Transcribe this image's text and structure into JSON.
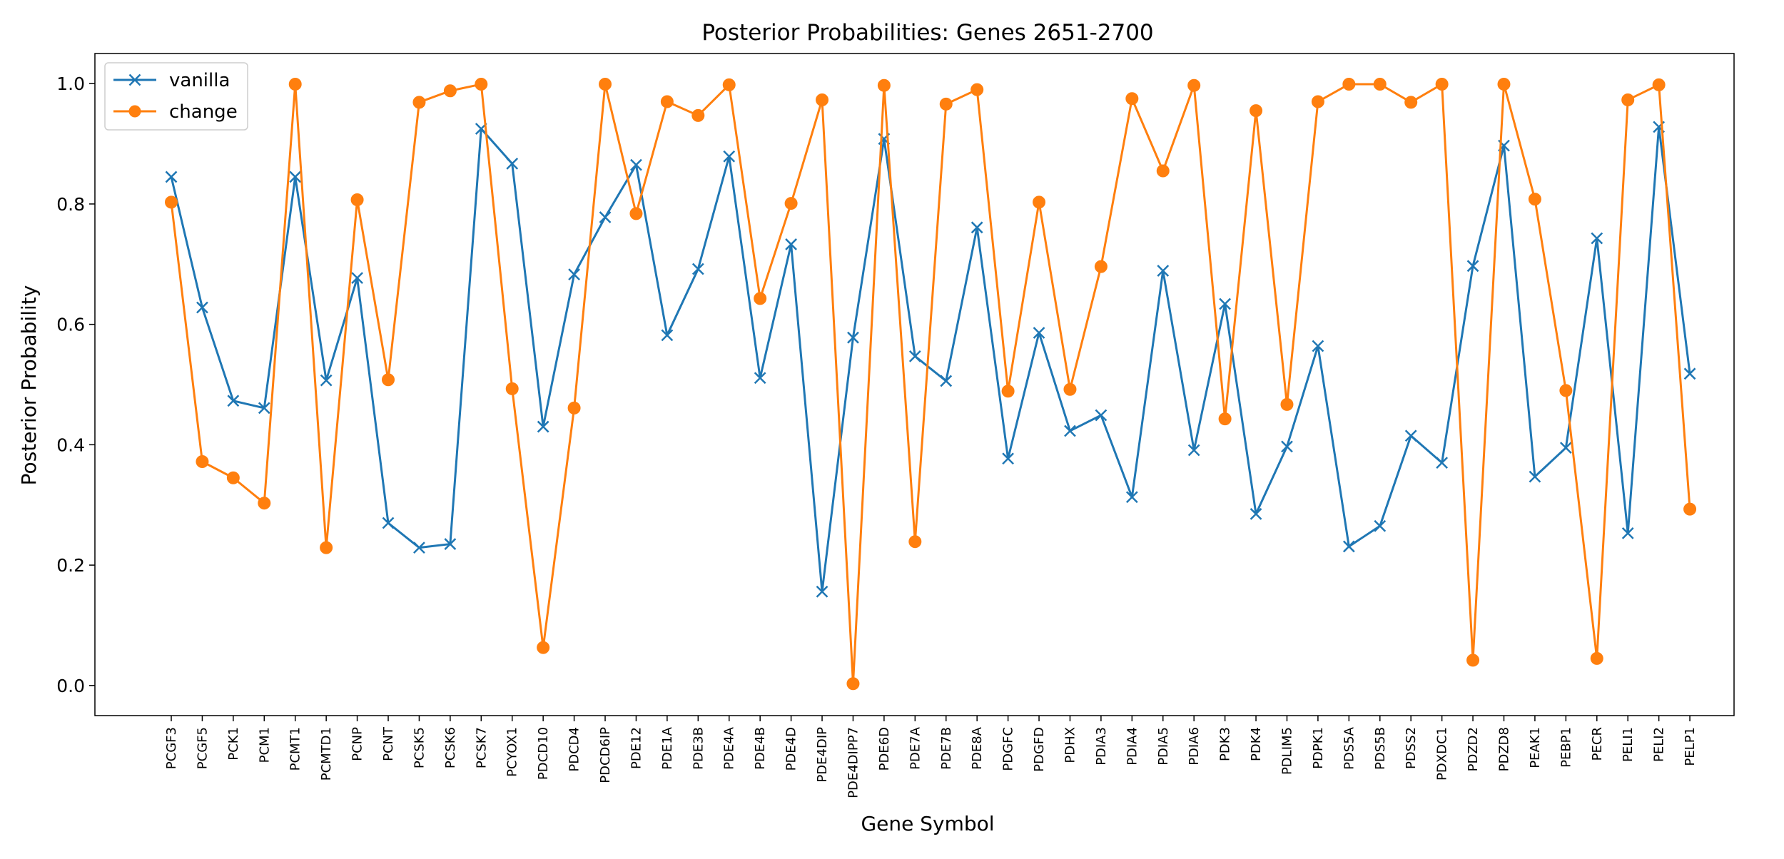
{
  "chart_data": {
    "type": "line",
    "title": "Posterior Probabilities: Genes 2651-2700",
    "xlabel": "Gene Symbol",
    "ylabel": "Posterior Probability",
    "ylim": [
      -0.05,
      1.05
    ],
    "yticks": [
      0.0,
      0.2,
      0.4,
      0.6,
      0.8,
      1.0
    ],
    "ytick_labels": [
      "0.0",
      "0.2",
      "0.4",
      "0.6",
      "0.8",
      "1.0"
    ],
    "grid": false,
    "legend_position": "top-left",
    "categories": [
      "PCGF3",
      "PCGF5",
      "PCK1",
      "PCM1",
      "PCMT1",
      "PCMTD1",
      "PCNP",
      "PCNT",
      "PCSK5",
      "PCSK6",
      "PCSK7",
      "PCYOX1",
      "PDCD10",
      "PDCD4",
      "PDCD6IP",
      "PDE12",
      "PDE1A",
      "PDE3B",
      "PDE4A",
      "PDE4B",
      "PDE4D",
      "PDE4DIP",
      "PDE4DIPP7",
      "PDE6D",
      "PDE7A",
      "PDE7B",
      "PDE8A",
      "PDGFC",
      "PDGFD",
      "PDHX",
      "PDIA3",
      "PDIA4",
      "PDIA5",
      "PDIA6",
      "PDK3",
      "PDK4",
      "PDLIM5",
      "PDPK1",
      "PDS5A",
      "PDS5B",
      "PDSS2",
      "PDXDC1",
      "PDZD2",
      "PDZD8",
      "PEAK1",
      "PEBP1",
      "PECR",
      "PELI1",
      "PELI2",
      "PELP1"
    ],
    "series": [
      {
        "name": "vanilla",
        "color": "#1f77b4",
        "marker": "x",
        "values": [
          0.845,
          0.628,
          0.473,
          0.461,
          0.845,
          0.507,
          0.677,
          0.27,
          0.229,
          0.235,
          0.925,
          0.867,
          0.43,
          0.683,
          0.778,
          0.865,
          0.582,
          0.692,
          0.879,
          0.511,
          0.733,
          0.156,
          0.578,
          0.908,
          0.547,
          0.506,
          0.761,
          0.377,
          0.586,
          0.423,
          0.449,
          0.313,
          0.689,
          0.391,
          0.634,
          0.285,
          0.397,
          0.564,
          0.231,
          0.265,
          0.415,
          0.37,
          0.697,
          0.897,
          0.347,
          0.395,
          0.743,
          0.253,
          0.928,
          0.518
        ]
      },
      {
        "name": "change",
        "color": "#ff7f0e",
        "marker": "o",
        "values": [
          0.803,
          0.372,
          0.345,
          0.303,
          0.999,
          0.229,
          0.807,
          0.508,
          0.969,
          0.988,
          0.999,
          0.493,
          0.063,
          0.461,
          0.999,
          0.784,
          0.97,
          0.947,
          0.998,
          0.643,
          0.801,
          0.973,
          0.003,
          0.997,
          0.239,
          0.966,
          0.99,
          0.489,
          0.803,
          0.492,
          0.696,
          0.975,
          0.855,
          0.997,
          0.443,
          0.955,
          0.467,
          0.97,
          0.999,
          0.999,
          0.969,
          0.999,
          0.042,
          0.999,
          0.808,
          0.49,
          0.045,
          0.973,
          0.998,
          0.293
        ]
      }
    ]
  }
}
